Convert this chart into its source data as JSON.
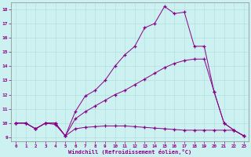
{
  "xlabel": "Windchill (Refroidissement éolien,°C)",
  "background_color": "#cdf0f0",
  "line_color": "#880088",
  "xlim": [
    -0.5,
    23.5
  ],
  "ylim": [
    8.7,
    18.5
  ],
  "yticks": [
    9,
    10,
    11,
    12,
    13,
    14,
    15,
    16,
    17,
    18
  ],
  "xticks": [
    0,
    1,
    2,
    3,
    4,
    5,
    6,
    7,
    8,
    9,
    10,
    11,
    12,
    13,
    14,
    15,
    16,
    17,
    18,
    19,
    20,
    21,
    22,
    23
  ],
  "line1_x": [
    0,
    1,
    2,
    3,
    4,
    5,
    6,
    7,
    8,
    9,
    10,
    11,
    12,
    13,
    14,
    15,
    16,
    17,
    18,
    19,
    20,
    21,
    22,
    23
  ],
  "line1_y": [
    10.0,
    10.0,
    9.6,
    10.0,
    10.0,
    9.1,
    9.6,
    9.7,
    9.75,
    9.8,
    9.8,
    9.8,
    9.75,
    9.7,
    9.65,
    9.6,
    9.55,
    9.5,
    9.5,
    9.5,
    9.5,
    9.5,
    9.5,
    9.1
  ],
  "line2_x": [
    0,
    1,
    2,
    3,
    4,
    5,
    6,
    7,
    8,
    9,
    10,
    11,
    12,
    13,
    14,
    15,
    16,
    17,
    18,
    19,
    20,
    21,
    22,
    23
  ],
  "line2_y": [
    10.0,
    10.0,
    9.6,
    10.0,
    10.0,
    9.1,
    10.3,
    10.8,
    11.2,
    11.6,
    12.0,
    12.3,
    12.7,
    13.1,
    13.5,
    13.9,
    14.2,
    14.4,
    14.5,
    14.5,
    12.2,
    10.0,
    9.5,
    9.1
  ],
  "line3_x": [
    0,
    1,
    2,
    3,
    4,
    5,
    6,
    7,
    8,
    9,
    10,
    11,
    12,
    13,
    14,
    15,
    16,
    17,
    18,
    19,
    20,
    21,
    22,
    23
  ],
  "line3_y": [
    10.0,
    10.0,
    9.6,
    10.0,
    9.9,
    9.1,
    10.8,
    11.9,
    12.3,
    13.0,
    14.0,
    14.8,
    15.4,
    16.7,
    17.0,
    18.2,
    17.7,
    17.8,
    15.4,
    15.4,
    12.2,
    10.0,
    9.5,
    9.1
  ]
}
